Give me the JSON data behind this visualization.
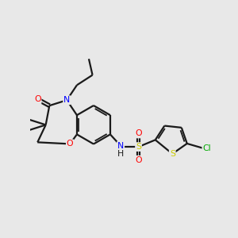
{
  "background_color": "#e8e8e8",
  "bond_color": "#1a1a1a",
  "atom_colors": {
    "N": "#0000ff",
    "O": "#ff0000",
    "S": "#cccc00",
    "Cl": "#00aa00",
    "C": "#1a1a1a",
    "H": "#1a1a1a"
  },
  "figsize": [
    3.0,
    3.0
  ],
  "dpi": 100,
  "xlim": [
    0,
    10
  ],
  "ylim": [
    0,
    10
  ]
}
